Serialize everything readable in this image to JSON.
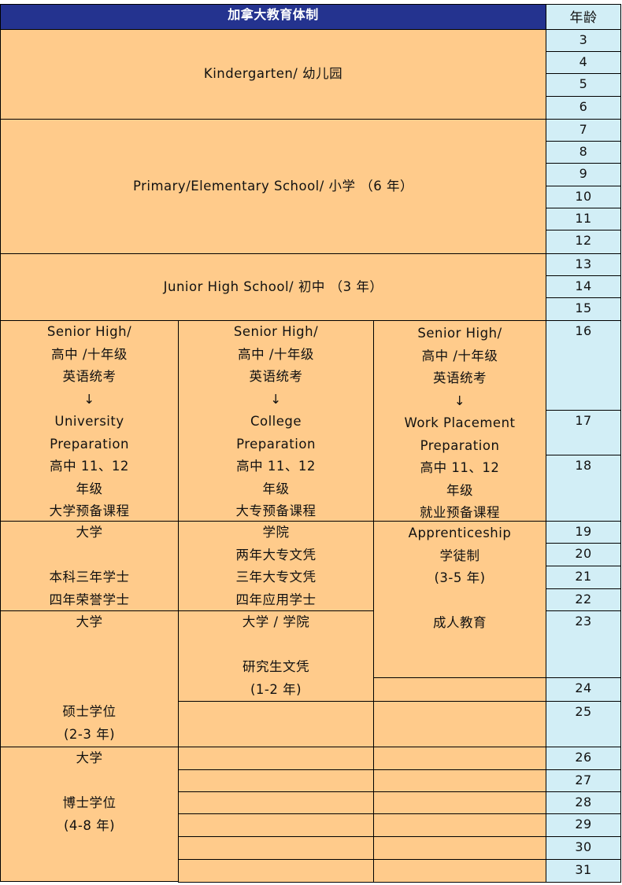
{
  "title": "加拿大教育体制",
  "age_header": "年龄",
  "colors": {
    "header_bg": "#24338F",
    "stage_bg": "#FFCB8B",
    "age_bg": "#D2EEF6"
  },
  "stages": {
    "kindergarten": "Kindergarten/ 幼儿园",
    "primary": "Primary/Elementary School/ 小学 （6 年）",
    "junior_high": "Junior High School/ 初中 （3 年）",
    "senior_university": [
      "Senior High/",
      "高中 /十年级",
      "英语统考",
      "↓",
      "University",
      "Preparation",
      "高中 11、12",
      "年级",
      "大学预备课程"
    ],
    "senior_college": [
      "Senior High/",
      "高中 /十年级",
      "英语统考",
      "↓",
      "College",
      "Preparation",
      "高中 11、12",
      "年级",
      "大专预备课程"
    ],
    "senior_work": [
      "Senior High/",
      "高中 /十年级",
      "英语统考",
      "↓",
      "Work Placement",
      "Preparation",
      "高中 11、12",
      "年级",
      "就业预备课程"
    ],
    "university_bachelor": [
      "大学",
      "",
      "本科三年学士",
      "四年荣誉学士"
    ],
    "college_diploma": [
      "学院",
      "两年大专文凭",
      "三年大专文凭",
      "四年应用学士"
    ],
    "apprenticeship": [
      "Apprenticeship",
      "学徒制",
      "(3-5 年)",
      "",
      "成人教育"
    ],
    "university_master": [
      "大学",
      "",
      "",
      "",
      "硕士学位",
      "(2-3 年)"
    ],
    "graduate_certificate": [
      "大学 / 学院",
      "",
      "研究生文凭",
      "(1-2 年)"
    ],
    "university_doctorate": [
      "大学",
      "",
      "博士学位",
      "(4-8 年)"
    ]
  },
  "ages": [
    "3",
    "4",
    "5",
    "6",
    "7",
    "8",
    "9",
    "10",
    "11",
    "12",
    "13",
    "14",
    "15",
    "16",
    "17",
    "18",
    "19",
    "20",
    "21",
    "22",
    "23",
    "24",
    "25",
    "26",
    "27",
    "28",
    "29",
    "30",
    "31"
  ]
}
